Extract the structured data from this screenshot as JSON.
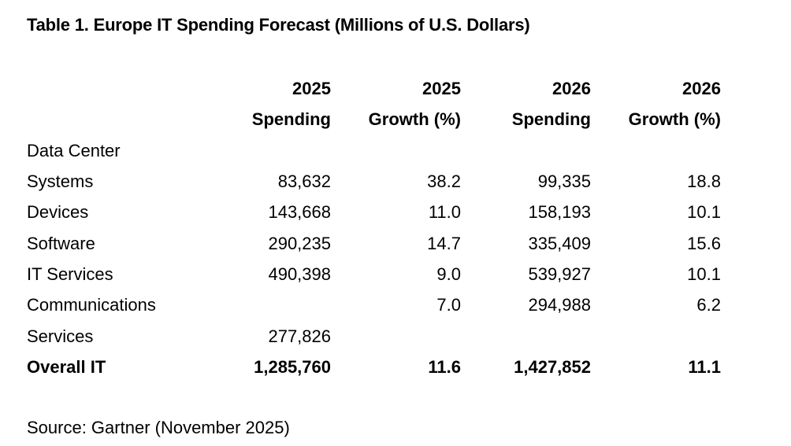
{
  "title": "Table 1. Europe IT Spending Forecast (Millions of U.S. Dollars)",
  "header": {
    "row1": [
      "2025",
      "2025",
      "2026",
      "2026"
    ],
    "row2": [
      "Spending",
      "Growth (%)",
      "Spending",
      "Growth (%)"
    ]
  },
  "rows": [
    {
      "label": "Data Center",
      "c1": "",
      "c2": "",
      "c3": "",
      "c4": ""
    },
    {
      "label": "Systems",
      "c1": "83,632",
      "c2": "38.2",
      "c3": "99,335",
      "c4": "18.8"
    },
    {
      "label": "Devices",
      "c1": "143,668",
      "c2": "11.0",
      "c3": "158,193",
      "c4": "10.1"
    },
    {
      "label": "Software",
      "c1": "290,235",
      "c2": "14.7",
      "c3": "335,409",
      "c4": "15.6"
    },
    {
      "label": "IT Services",
      "c1": "490,398",
      "c2": "9.0",
      "c3": "539,927",
      "c4": "10.1"
    },
    {
      "label": "Communications",
      "c1": "",
      "c2": "7.0",
      "c3": "294,988",
      "c4": "6.2"
    },
    {
      "label": "Services",
      "c1": "277,826",
      "c2": "",
      "c3": "",
      "c4": ""
    }
  ],
  "total": {
    "label": "Overall IT",
    "c1": "1,285,760",
    "c2": "11.6",
    "c3": "1,427,852",
    "c4": "11.1"
  },
  "source": "Source: Gartner (November 2025)"
}
